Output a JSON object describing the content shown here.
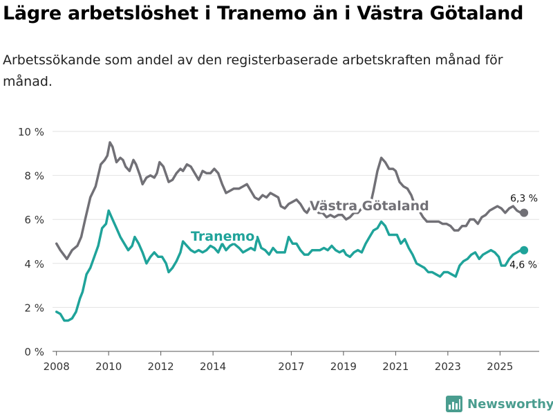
{
  "title": "Lägre arbetslöshet i Tranemo än i Västra Götaland",
  "subtitle": "Arbetssökande som andel av den registerbaserade arbetskraften månad för månad.",
  "logo": {
    "text": "Newsworthy",
    "icon": "bar-chart-icon"
  },
  "colors": {
    "region": "#717076",
    "local": "#1fa39a",
    "grid": "#e2e2e2",
    "axis": "#555555"
  },
  "chart_data": {
    "type": "line",
    "x_unit": "year (decimal)",
    "y_unit": "percent",
    "xlim": [
      2008,
      2026.2
    ],
    "ylim": [
      0,
      10
    ],
    "grid": true,
    "y_ticks": [
      0,
      2,
      4,
      6,
      8,
      10
    ],
    "y_tick_labels": [
      "0 %",
      "2 %",
      "4 %",
      "6 %",
      "8 %",
      "10 %"
    ],
    "x_ticks": [
      2008,
      2010,
      2012,
      2014,
      2017,
      2019,
      2021,
      2023,
      2025
    ],
    "x_tick_labels": [
      "2008",
      "2010",
      "2012",
      "2014",
      "2017",
      "2019",
      "2021",
      "2023",
      "2025"
    ],
    "series": [
      {
        "name": "Västra Götaland",
        "label": "Västra Götaland",
        "end_label": "6,3 %",
        "points": [
          [
            2008.0,
            4.9
          ],
          [
            2008.15,
            4.6
          ],
          [
            2008.4,
            4.2
          ],
          [
            2008.6,
            4.6
          ],
          [
            2008.8,
            4.8
          ],
          [
            2008.95,
            5.2
          ],
          [
            2009.1,
            6.0
          ],
          [
            2009.3,
            7.0
          ],
          [
            2009.5,
            7.5
          ],
          [
            2009.7,
            8.5
          ],
          [
            2009.85,
            8.7
          ],
          [
            2009.95,
            8.9
          ],
          [
            2010.05,
            9.5
          ],
          [
            2010.15,
            9.3
          ],
          [
            2010.3,
            8.6
          ],
          [
            2010.45,
            8.8
          ],
          [
            2010.55,
            8.7
          ],
          [
            2010.65,
            8.4
          ],
          [
            2010.8,
            8.2
          ],
          [
            2010.95,
            8.7
          ],
          [
            2011.05,
            8.5
          ],
          [
            2011.2,
            8.0
          ],
          [
            2011.3,
            7.6
          ],
          [
            2011.45,
            7.9
          ],
          [
            2011.6,
            8.0
          ],
          [
            2011.75,
            7.9
          ],
          [
            2011.85,
            8.1
          ],
          [
            2011.95,
            8.6
          ],
          [
            2012.1,
            8.4
          ],
          [
            2012.3,
            7.7
          ],
          [
            2012.45,
            7.8
          ],
          [
            2012.6,
            8.1
          ],
          [
            2012.75,
            8.3
          ],
          [
            2012.85,
            8.2
          ],
          [
            2013.0,
            8.5
          ],
          [
            2013.15,
            8.4
          ],
          [
            2013.3,
            8.1
          ],
          [
            2013.45,
            7.8
          ],
          [
            2013.6,
            8.2
          ],
          [
            2013.75,
            8.1
          ],
          [
            2013.9,
            8.1
          ],
          [
            2014.05,
            8.3
          ],
          [
            2014.2,
            8.1
          ],
          [
            2014.35,
            7.6
          ],
          [
            2014.5,
            7.2
          ],
          [
            2014.65,
            7.3
          ],
          [
            2014.8,
            7.4
          ],
          [
            2015.0,
            7.4
          ],
          [
            2015.15,
            7.5
          ],
          [
            2015.3,
            7.6
          ],
          [
            2015.45,
            7.3
          ],
          [
            2015.6,
            7.0
          ],
          [
            2015.75,
            6.9
          ],
          [
            2015.9,
            7.1
          ],
          [
            2016.05,
            7.0
          ],
          [
            2016.2,
            7.2
          ],
          [
            2016.35,
            7.1
          ],
          [
            2016.5,
            7.0
          ],
          [
            2016.6,
            6.6
          ],
          [
            2016.75,
            6.5
          ],
          [
            2016.9,
            6.7
          ],
          [
            2017.05,
            6.8
          ],
          [
            2017.2,
            6.9
          ],
          [
            2017.35,
            6.7
          ],
          [
            2017.5,
            6.4
          ],
          [
            2017.6,
            6.3
          ],
          [
            2017.75,
            6.6
          ],
          [
            2017.9,
            6.5
          ],
          [
            2018.05,
            6.3
          ],
          [
            2018.2,
            6.3
          ],
          [
            2018.35,
            6.1
          ],
          [
            2018.5,
            6.2
          ],
          [
            2018.65,
            6.1
          ],
          [
            2018.8,
            6.2
          ],
          [
            2018.95,
            6.2
          ],
          [
            2019.1,
            6.0
          ],
          [
            2019.25,
            6.1
          ],
          [
            2019.4,
            6.3
          ],
          [
            2019.55,
            6.3
          ],
          [
            2019.7,
            6.5
          ],
          [
            2019.85,
            6.4
          ],
          [
            2020.0,
            6.5
          ],
          [
            2020.15,
            7.3
          ],
          [
            2020.3,
            8.2
          ],
          [
            2020.45,
            8.8
          ],
          [
            2020.6,
            8.6
          ],
          [
            2020.75,
            8.3
          ],
          [
            2020.9,
            8.3
          ],
          [
            2021.0,
            8.2
          ],
          [
            2021.15,
            7.7
          ],
          [
            2021.3,
            7.5
          ],
          [
            2021.45,
            7.4
          ],
          [
            2021.6,
            7.1
          ],
          [
            2021.75,
            6.6
          ],
          [
            2021.9,
            6.4
          ],
          [
            2022.05,
            6.1
          ],
          [
            2022.2,
            5.9
          ],
          [
            2022.35,
            5.9
          ],
          [
            2022.5,
            5.9
          ],
          [
            2022.65,
            5.9
          ],
          [
            2022.8,
            5.8
          ],
          [
            2022.95,
            5.8
          ],
          [
            2023.1,
            5.7
          ],
          [
            2023.25,
            5.5
          ],
          [
            2023.4,
            5.5
          ],
          [
            2023.55,
            5.7
          ],
          [
            2023.7,
            5.7
          ],
          [
            2023.85,
            6.0
          ],
          [
            2024.0,
            6.0
          ],
          [
            2024.15,
            5.8
          ],
          [
            2024.3,
            6.1
          ],
          [
            2024.45,
            6.2
          ],
          [
            2024.6,
            6.4
          ],
          [
            2024.75,
            6.5
          ],
          [
            2024.9,
            6.6
          ],
          [
            2025.05,
            6.5
          ],
          [
            2025.2,
            6.3
          ],
          [
            2025.35,
            6.5
          ],
          [
            2025.5,
            6.6
          ],
          [
            2025.65,
            6.4
          ],
          [
            2025.8,
            6.3
          ],
          [
            2025.92,
            6.3
          ]
        ]
      },
      {
        "name": "Tranemo",
        "label": "Tranemo",
        "end_label": "4,6 %",
        "points": [
          [
            2008.0,
            1.8
          ],
          [
            2008.15,
            1.7
          ],
          [
            2008.3,
            1.4
          ],
          [
            2008.45,
            1.4
          ],
          [
            2008.6,
            1.5
          ],
          [
            2008.75,
            1.8
          ],
          [
            2008.9,
            2.4
          ],
          [
            2009.0,
            2.7
          ],
          [
            2009.15,
            3.5
          ],
          [
            2009.3,
            3.8
          ],
          [
            2009.45,
            4.3
          ],
          [
            2009.6,
            4.8
          ],
          [
            2009.75,
            5.6
          ],
          [
            2009.9,
            5.8
          ],
          [
            2010.0,
            6.4
          ],
          [
            2010.15,
            6.0
          ],
          [
            2010.3,
            5.6
          ],
          [
            2010.45,
            5.2
          ],
          [
            2010.6,
            4.9
          ],
          [
            2010.75,
            4.6
          ],
          [
            2010.9,
            4.8
          ],
          [
            2011.0,
            5.2
          ],
          [
            2011.15,
            4.9
          ],
          [
            2011.3,
            4.5
          ],
          [
            2011.45,
            4.0
          ],
          [
            2011.6,
            4.3
          ],
          [
            2011.75,
            4.5
          ],
          [
            2011.9,
            4.3
          ],
          [
            2012.05,
            4.3
          ],
          [
            2012.2,
            4.0
          ],
          [
            2012.3,
            3.6
          ],
          [
            2012.45,
            3.8
          ],
          [
            2012.6,
            4.1
          ],
          [
            2012.75,
            4.5
          ],
          [
            2012.85,
            5.0
          ],
          [
            2013.0,
            4.8
          ],
          [
            2013.15,
            4.6
          ],
          [
            2013.3,
            4.5
          ],
          [
            2013.45,
            4.6
          ],
          [
            2013.6,
            4.5
          ],
          [
            2013.75,
            4.6
          ],
          [
            2013.9,
            4.8
          ],
          [
            2014.05,
            4.7
          ],
          [
            2014.2,
            4.5
          ],
          [
            2014.35,
            4.9
          ],
          [
            2014.5,
            4.6
          ],
          [
            2014.65,
            4.8
          ],
          [
            2014.8,
            4.9
          ],
          [
            2015.0,
            4.7
          ],
          [
            2015.15,
            4.5
          ],
          [
            2015.3,
            4.6
          ],
          [
            2015.45,
            4.7
          ],
          [
            2015.6,
            4.6
          ],
          [
            2015.7,
            5.2
          ],
          [
            2015.85,
            4.7
          ],
          [
            2016.0,
            4.6
          ],
          [
            2016.15,
            4.4
          ],
          [
            2016.3,
            4.7
          ],
          [
            2016.45,
            4.5
          ],
          [
            2016.6,
            4.5
          ],
          [
            2016.75,
            4.5
          ],
          [
            2016.9,
            5.2
          ],
          [
            2017.05,
            4.9
          ],
          [
            2017.2,
            4.9
          ],
          [
            2017.35,
            4.6
          ],
          [
            2017.5,
            4.4
          ],
          [
            2017.65,
            4.4
          ],
          [
            2017.8,
            4.6
          ],
          [
            2017.95,
            4.6
          ],
          [
            2018.1,
            4.6
          ],
          [
            2018.25,
            4.7
          ],
          [
            2018.4,
            4.6
          ],
          [
            2018.55,
            4.8
          ],
          [
            2018.7,
            4.6
          ],
          [
            2018.85,
            4.5
          ],
          [
            2019.0,
            4.6
          ],
          [
            2019.1,
            4.4
          ],
          [
            2019.25,
            4.3
          ],
          [
            2019.4,
            4.5
          ],
          [
            2019.55,
            4.6
          ],
          [
            2019.7,
            4.5
          ],
          [
            2019.85,
            4.9
          ],
          [
            2020.0,
            5.2
          ],
          [
            2020.15,
            5.5
          ],
          [
            2020.3,
            5.6
          ],
          [
            2020.45,
            5.9
          ],
          [
            2020.6,
            5.7
          ],
          [
            2020.75,
            5.3
          ],
          [
            2020.9,
            5.3
          ],
          [
            2021.05,
            5.3
          ],
          [
            2021.2,
            4.9
          ],
          [
            2021.35,
            5.1
          ],
          [
            2021.5,
            4.7
          ],
          [
            2021.65,
            4.4
          ],
          [
            2021.8,
            4.0
          ],
          [
            2021.95,
            3.9
          ],
          [
            2022.1,
            3.8
          ],
          [
            2022.25,
            3.6
          ],
          [
            2022.4,
            3.6
          ],
          [
            2022.55,
            3.5
          ],
          [
            2022.7,
            3.4
          ],
          [
            2022.85,
            3.6
          ],
          [
            2023.0,
            3.6
          ],
          [
            2023.15,
            3.5
          ],
          [
            2023.3,
            3.4
          ],
          [
            2023.45,
            3.9
          ],
          [
            2023.6,
            4.1
          ],
          [
            2023.75,
            4.2
          ],
          [
            2023.9,
            4.4
          ],
          [
            2024.05,
            4.5
          ],
          [
            2024.2,
            4.2
          ],
          [
            2024.35,
            4.4
          ],
          [
            2024.5,
            4.5
          ],
          [
            2024.65,
            4.6
          ],
          [
            2024.8,
            4.5
          ],
          [
            2024.95,
            4.3
          ],
          [
            2025.05,
            3.9
          ],
          [
            2025.2,
            3.9
          ],
          [
            2025.35,
            4.2
          ],
          [
            2025.5,
            4.4
          ],
          [
            2025.65,
            4.5
          ],
          [
            2025.8,
            4.6
          ],
          [
            2025.92,
            4.6
          ]
        ]
      }
    ]
  }
}
